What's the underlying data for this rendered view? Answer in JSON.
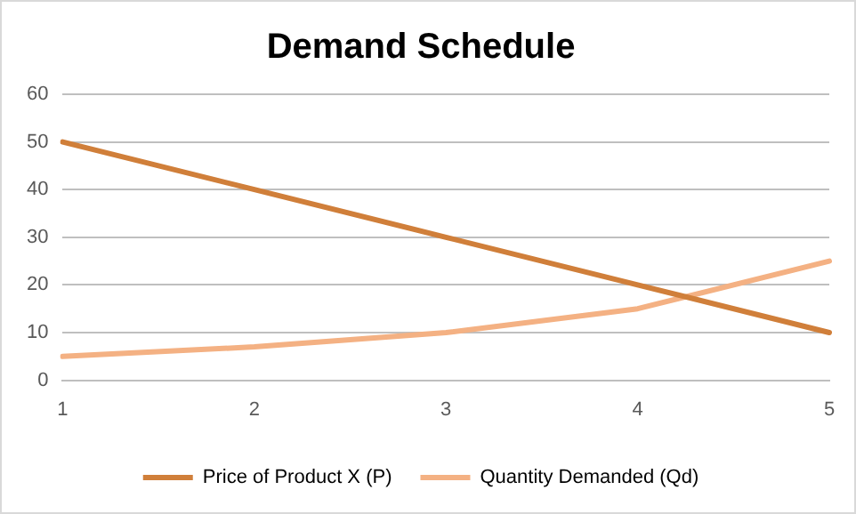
{
  "chart_data": {
    "type": "line",
    "title": "Demand Schedule",
    "categories": [
      "1",
      "2",
      "3",
      "4",
      "5"
    ],
    "series": [
      {
        "name": "Price of Product X (P)",
        "color": "#d07f3a",
        "values": [
          50,
          40,
          30,
          20,
          10
        ]
      },
      {
        "name": "Quantity Demanded (Qd)",
        "color": "#f4b183",
        "values": [
          5,
          7,
          10,
          15,
          25
        ]
      }
    ],
    "ylim": [
      0,
      60
    ],
    "yticks": [
      0,
      10,
      20,
      30,
      40,
      50,
      60
    ],
    "grid": "y",
    "legend": "bottom",
    "marker": "none",
    "line_style": "solid"
  }
}
